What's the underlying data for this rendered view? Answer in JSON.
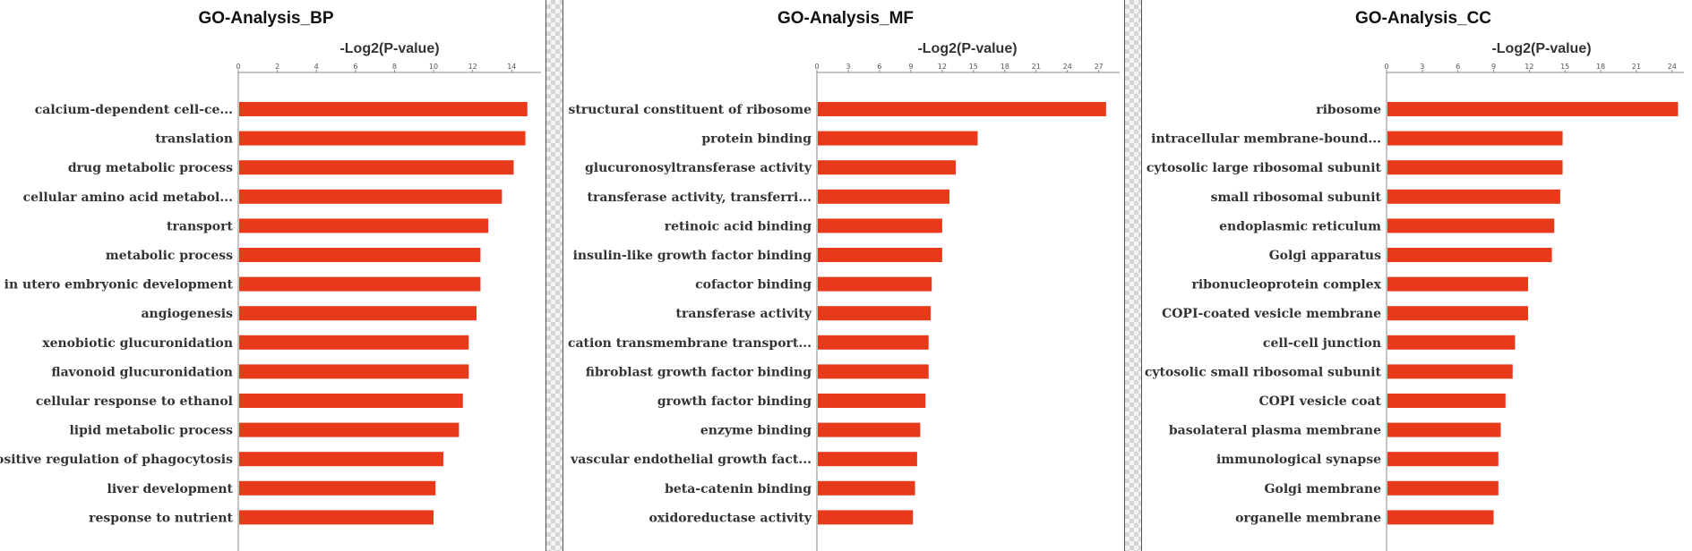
{
  "colors": {
    "bar": "#e8391a",
    "axis": "#888888",
    "text": "#333333"
  },
  "chart_data": [
    {
      "type": "bar",
      "orientation": "horizontal",
      "title": "GO-Analysis_BP",
      "xlabel": "-Log2(P-value)",
      "xlim": [
        0,
        15.5
      ],
      "xticks": [
        0,
        2,
        4,
        6,
        8,
        10,
        12,
        14
      ],
      "categories": [
        "calcium-dependent cell-ce...",
        "translation",
        "drug metabolic process",
        "cellular amino acid metabol...",
        "transport",
        "metabolic process",
        "in utero embryonic development",
        "angiogenesis",
        "xenobiotic glucuronidation",
        "flavonoid glucuronidation",
        "cellular response to ethanol",
        "lipid metabolic process",
        "positive regulation of phagocytosis",
        "liver development",
        "response to nutrient"
      ],
      "values": [
        14.8,
        14.7,
        14.1,
        13.5,
        12.8,
        12.4,
        12.4,
        12.2,
        11.8,
        11.8,
        11.5,
        11.3,
        10.5,
        10.1,
        10.0
      ]
    },
    {
      "type": "bar",
      "orientation": "horizontal",
      "title": "GO-Analysis_MF",
      "xlabel": "-Log2(P-value)",
      "xlim": [
        0,
        29
      ],
      "xticks": [
        0,
        3,
        6,
        9,
        12,
        15,
        18,
        21,
        24,
        27
      ],
      "categories": [
        "structural constituent of ribosome",
        "protein binding",
        "glucuronosyltransferase activity",
        "transferase activity, transferri...",
        "retinoic acid binding",
        "insulin-like growth factor binding",
        "cofactor binding",
        "transferase activity",
        "cation transmembrane transport...",
        "fibroblast growth factor binding",
        "growth factor binding",
        "enzyme binding",
        "vascular endothelial growth fact...",
        "beta-catenin binding",
        "oxidoreductase activity"
      ],
      "values": [
        27.7,
        15.4,
        13.3,
        12.7,
        12.0,
        12.0,
        11.0,
        10.9,
        10.7,
        10.7,
        10.4,
        9.9,
        9.6,
        9.4,
        9.2
      ]
    },
    {
      "type": "bar",
      "orientation": "horizontal",
      "title": "GO-Analysis_CC",
      "xlabel": "-Log2(P-value)",
      "xlim": [
        0,
        25
      ],
      "xticks": [
        0,
        3,
        6,
        9,
        12,
        15,
        18,
        21,
        24
      ],
      "categories": [
        "ribosome",
        "intracellular membrane-bound...",
        "cytosolic large ribosomal subunit",
        "small ribosomal subunit",
        "endoplasmic reticulum",
        "Golgi apparatus",
        "ribonucleoprotein complex",
        "COPI-coated vesicle membrane",
        "cell-cell junction",
        "cytosolic small ribosomal subunit",
        "COPI vesicle coat",
        "basolateral plasma membrane",
        "immunological synapse",
        "Golgi membrane",
        "organelle membrane"
      ],
      "values": [
        24.5,
        14.8,
        14.8,
        14.6,
        14.1,
        13.9,
        11.9,
        11.9,
        10.8,
        10.6,
        10.0,
        9.6,
        9.4,
        9.4,
        9.0
      ]
    }
  ]
}
